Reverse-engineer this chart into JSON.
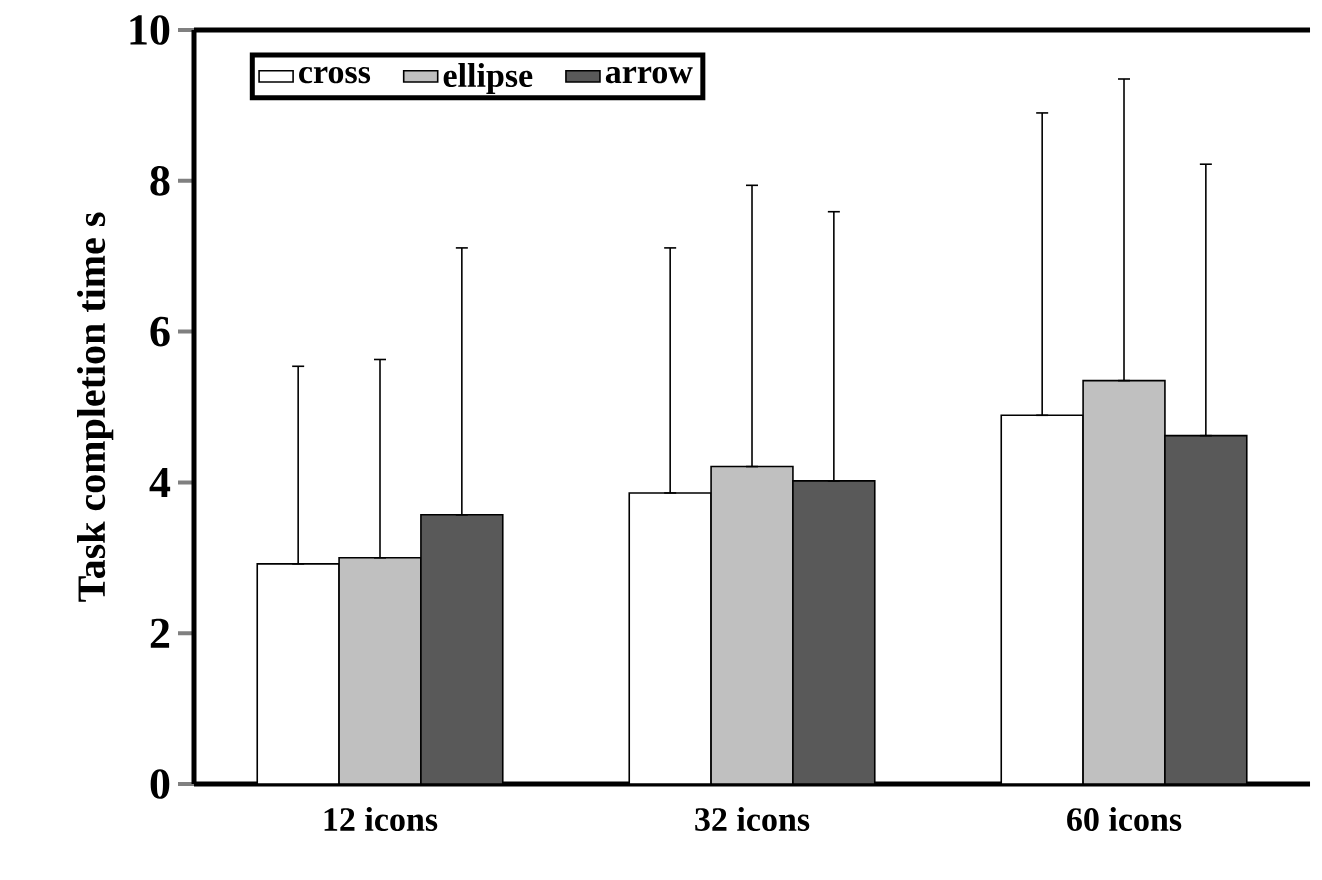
{
  "chart_data": {
    "type": "bar",
    "ylabel": "Task completion time  s",
    "categories": [
      "12 icons",
      "32 icons",
      "60 icons"
    ],
    "series": [
      {
        "name": "cross",
        "color": "#ffffff",
        "values": [
          2.92,
          3.86,
          4.89
        ],
        "errors": [
          [
            2.92,
            5.54
          ],
          [
            3.86,
            7.11
          ],
          [
            4.89,
            8.9
          ]
        ]
      },
      {
        "name": "ellipse",
        "color": "#c0c0c0",
        "values": [
          3.0,
          4.21,
          5.35
        ],
        "errors": [
          [
            3.0,
            5.63
          ],
          [
            4.21,
            7.94
          ],
          [
            5.35,
            9.35
          ]
        ]
      },
      {
        "name": "arrow",
        "color": "#595959",
        "values": [
          3.57,
          4.02,
          4.62
        ],
        "errors": [
          [
            3.57,
            7.11
          ],
          [
            4.02,
            7.59
          ],
          [
            4.62,
            8.22
          ]
        ]
      }
    ],
    "ylim": [
      0,
      10
    ],
    "yticks": [
      0,
      2,
      4,
      6,
      8,
      10
    ],
    "grid": false,
    "legend": "top left"
  }
}
